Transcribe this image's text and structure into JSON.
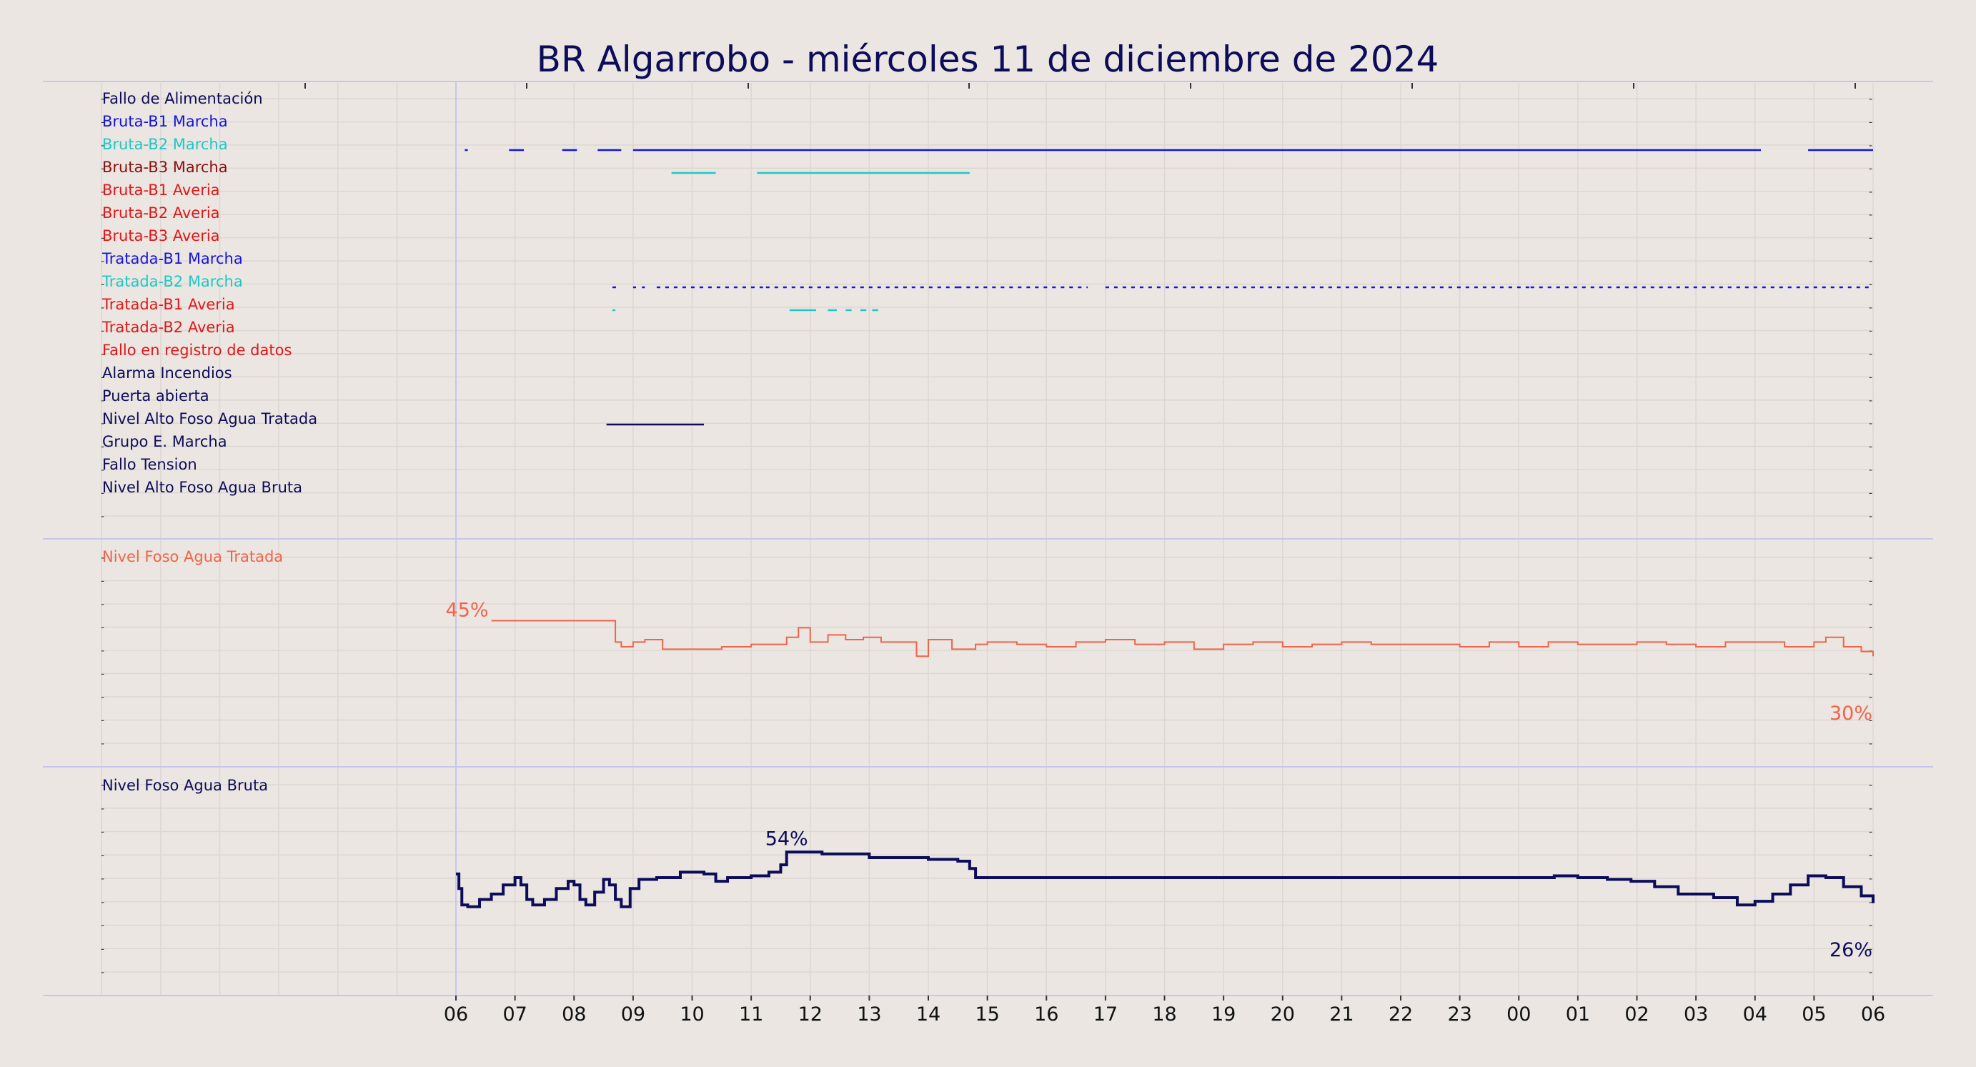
{
  "chart_data": {
    "type": "line",
    "title": "BR Algarrobo   -   miércoles 11 de diciembre de 2024",
    "x_ticks": [
      "06",
      "07",
      "08",
      "09",
      "10",
      "11",
      "12",
      "13",
      "14",
      "15",
      "16",
      "17",
      "18",
      "19",
      "20",
      "21",
      "22",
      "23",
      "00",
      "01",
      "02",
      "03",
      "04",
      "05",
      "06"
    ],
    "colors": {
      "background": "#ebe6e1",
      "title": "#0c0c5a",
      "navy": "#0c0c5a",
      "blue": "#1515d8",
      "cyan": "#1ec8c8",
      "darkred": "#8b1010",
      "red": "#e01818",
      "salmon": "#f0644a",
      "panel_line": "#c6c6f0"
    },
    "panels": [
      {
        "name": "digital_signals",
        "signals": [
          {
            "label": "Fallo de Alimentación",
            "color": "#0c0c5a",
            "segments": []
          },
          {
            "label": "Bruta-B1 Marcha",
            "color": "#1515d8",
            "segments": [
              [
                6.15,
                6.2
              ],
              [
                6.9,
                7.15
              ],
              [
                7.8,
                8.05
              ],
              [
                8.4,
                8.8
              ],
              [
                9.0,
                28.1
              ],
              [
                28.9,
                30.0
              ]
            ]
          },
          {
            "label": "Bruta-B2 Marcha",
            "color": "#1ec8c8",
            "segments": [
              [
                9.65,
                10.4
              ],
              [
                11.1,
                14.7
              ]
            ]
          },
          {
            "label": "Bruta-B3 Marcha",
            "color": "#8b1010",
            "segments": []
          },
          {
            "label": "Bruta-B1 Averia",
            "color": "#e01818",
            "segments": []
          },
          {
            "label": "Bruta-B2 Averia",
            "color": "#e01818",
            "segments": []
          },
          {
            "label": "Bruta-B3 Averia",
            "color": "#e01818",
            "segments": []
          },
          {
            "label": "Tratada-B1 Marcha",
            "color": "#1515d8",
            "segments": [
              [
                8.65,
                8.72
              ],
              [
                9.0,
                9.05
              ],
              [
                9.15,
                9.2
              ],
              [
                9.4,
                11.2
              ],
              [
                11.25,
                14.5
              ],
              [
                14.5,
                16.7
              ],
              [
                17.0,
                24.2
              ],
              [
                24.2,
                30.0
              ]
            ],
            "dashed": true
          },
          {
            "label": "Tratada-B2 Marcha",
            "color": "#1ec8c8",
            "segments": [
              [
                8.65,
                8.7
              ],
              [
                11.65,
                12.1
              ],
              [
                12.3,
                12.45
              ],
              [
                12.6,
                12.7
              ],
              [
                12.85,
                12.95
              ],
              [
                13.05,
                13.15
              ]
            ]
          },
          {
            "label": "Tratada-B1 Averia",
            "color": "#e01818",
            "segments": []
          },
          {
            "label": "Tratada-B2 Averia",
            "color": "#e01818",
            "segments": []
          },
          {
            "label": "Fallo en registro de datos",
            "color": "#e01818",
            "segments": []
          },
          {
            "label": "Alarma Incendios",
            "color": "#0c0c5a",
            "segments": []
          },
          {
            "label": "Puerta abierta",
            "color": "#0c0c5a",
            "segments": [
              [
                8.55,
                10.2
              ]
            ]
          },
          {
            "label": "Nivel Alto Foso Agua Tratada",
            "color": "#0c0c5a",
            "segments": []
          },
          {
            "label": "Grupo E. Marcha",
            "color": "#0c0c5a",
            "segments": []
          },
          {
            "label": "Fallo Tension",
            "color": "#0c0c5a",
            "segments": []
          },
          {
            "label": "Nivel Alto Foso Agua Bruta",
            "color": "#0c0c5a",
            "segments": []
          }
        ]
      },
      {
        "name": "nivel_tratada",
        "label": "Nivel Foso Agua Tratada",
        "color": "#f0644a",
        "ylim": [
          0,
          100
        ],
        "start_label": "45%",
        "end_label": "30%",
        "series": [
          [
            6.6,
            45
          ],
          [
            8.65,
            45
          ],
          [
            8.7,
            36
          ],
          [
            8.8,
            34
          ],
          [
            9.0,
            36
          ],
          [
            9.2,
            37
          ],
          [
            9.5,
            33
          ],
          [
            10.0,
            33
          ],
          [
            10.5,
            34
          ],
          [
            11.0,
            35
          ],
          [
            11.3,
            35
          ],
          [
            11.6,
            38
          ],
          [
            11.8,
            42
          ],
          [
            12.0,
            36
          ],
          [
            12.3,
            39
          ],
          [
            12.6,
            37
          ],
          [
            12.9,
            38
          ],
          [
            13.2,
            36
          ],
          [
            13.6,
            36
          ],
          [
            13.8,
            30
          ],
          [
            14.0,
            37
          ],
          [
            14.4,
            33
          ],
          [
            14.8,
            35
          ],
          [
            15.0,
            36
          ],
          [
            15.5,
            35
          ],
          [
            16.0,
            34
          ],
          [
            16.5,
            36
          ],
          [
            17.0,
            37
          ],
          [
            17.5,
            35
          ],
          [
            18.0,
            36
          ],
          [
            18.5,
            33
          ],
          [
            19.0,
            35
          ],
          [
            19.5,
            36
          ],
          [
            20.0,
            34
          ],
          [
            20.5,
            35
          ],
          [
            21.0,
            36
          ],
          [
            21.5,
            35
          ],
          [
            22.0,
            35
          ],
          [
            22.5,
            35
          ],
          [
            23.0,
            34
          ],
          [
            23.5,
            36
          ],
          [
            24.0,
            34
          ],
          [
            24.5,
            36
          ],
          [
            25.0,
            35
          ],
          [
            25.5,
            35
          ],
          [
            26.0,
            36
          ],
          [
            26.5,
            35
          ],
          [
            27.0,
            34
          ],
          [
            27.5,
            36
          ],
          [
            28.0,
            36
          ],
          [
            28.5,
            34
          ],
          [
            29.0,
            36
          ],
          [
            29.2,
            38
          ],
          [
            29.5,
            34
          ],
          [
            29.8,
            32
          ],
          [
            30.0,
            30
          ]
        ]
      },
      {
        "name": "nivel_bruta",
        "label": "Nivel Foso Agua Bruta",
        "color": "#0c0c5a",
        "ylim": [
          0,
          100
        ],
        "peak_label": "54%",
        "end_label": "26%",
        "series": [
          [
            6.0,
            42
          ],
          [
            6.05,
            34
          ],
          [
            6.1,
            25
          ],
          [
            6.2,
            24
          ],
          [
            6.4,
            28
          ],
          [
            6.6,
            31
          ],
          [
            6.8,
            36
          ],
          [
            7.0,
            40
          ],
          [
            7.1,
            36
          ],
          [
            7.2,
            28
          ],
          [
            7.3,
            25
          ],
          [
            7.5,
            28
          ],
          [
            7.7,
            34
          ],
          [
            7.9,
            38
          ],
          [
            8.0,
            36
          ],
          [
            8.1,
            28
          ],
          [
            8.2,
            25
          ],
          [
            8.35,
            32
          ],
          [
            8.5,
            39
          ],
          [
            8.6,
            36
          ],
          [
            8.7,
            28
          ],
          [
            8.8,
            24
          ],
          [
            8.95,
            34
          ],
          [
            9.1,
            39
          ],
          [
            9.4,
            40
          ],
          [
            9.7,
            40
          ],
          [
            9.8,
            43
          ],
          [
            10.2,
            42
          ],
          [
            10.4,
            38
          ],
          [
            10.6,
            40
          ],
          [
            11.0,
            41
          ],
          [
            11.3,
            43
          ],
          [
            11.5,
            47
          ],
          [
            11.6,
            54
          ],
          [
            12.2,
            53
          ],
          [
            13.0,
            51
          ],
          [
            14.0,
            50
          ],
          [
            14.5,
            49
          ],
          [
            14.7,
            45
          ],
          [
            14.8,
            40
          ],
          [
            15.2,
            40
          ],
          [
            16.0,
            40
          ],
          [
            17.0,
            40
          ],
          [
            18.0,
            40
          ],
          [
            19.0,
            40
          ],
          [
            20.0,
            40
          ],
          [
            21.0,
            40
          ],
          [
            22.0,
            40
          ],
          [
            23.0,
            40
          ],
          [
            24.0,
            40
          ],
          [
            24.6,
            41
          ],
          [
            25.0,
            40
          ],
          [
            25.5,
            39
          ],
          [
            25.9,
            38
          ],
          [
            26.3,
            35
          ],
          [
            26.7,
            31
          ],
          [
            27.0,
            31
          ],
          [
            27.3,
            29
          ],
          [
            27.7,
            25
          ],
          [
            28.0,
            27
          ],
          [
            28.3,
            31
          ],
          [
            28.6,
            36
          ],
          [
            28.9,
            41
          ],
          [
            29.2,
            40
          ],
          [
            29.5,
            35
          ],
          [
            29.8,
            30
          ],
          [
            30.0,
            26
          ]
        ]
      }
    ]
  }
}
